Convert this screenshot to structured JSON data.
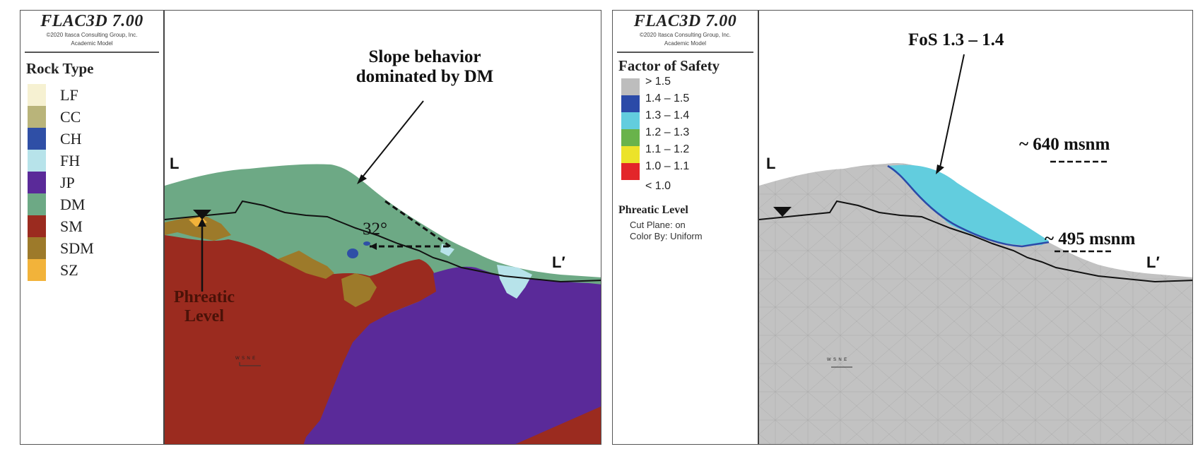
{
  "left_panel": {
    "software": "FLAC3D 7.00",
    "copyright": "©2020 Itasca Consulting Group, Inc.",
    "model": "Academic Model",
    "legend_title": "Rock Type",
    "rock_types": [
      {
        "label": "LF",
        "color": "#f6f1d2"
      },
      {
        "label": "CC",
        "color": "#b9b47a"
      },
      {
        "label": "CH",
        "color": "#2f4fa6"
      },
      {
        "label": "FH",
        "color": "#b7e3ea"
      },
      {
        "label": "JP",
        "color": "#5a2a99"
      },
      {
        "label": "DM",
        "color": "#6da985"
      },
      {
        "label": "SM",
        "color": "#9b2b1f"
      },
      {
        "label": "SDM",
        "color": "#9d7a2a"
      },
      {
        "label": "SZ",
        "color": "#f2b33a"
      }
    ],
    "section_start": "L",
    "section_end": "L′",
    "annotation_slope": [
      "Slope behavior",
      "dominated by DM"
    ],
    "annotation_angle": "32°",
    "annotation_phreatic": [
      "Phreatic",
      "Level"
    ]
  },
  "right_panel": {
    "software": "FLAC3D 7.00",
    "copyright": "©2020 Itasca Consulting Group, Inc.",
    "model": "Academic Model",
    "legend_title": "Factor of Safety",
    "fos_classes": [
      {
        "label": "> 1.5",
        "color": "#bdbdbd"
      },
      {
        "label": "1.4 – 1.5",
        "color": "#2b4aa8"
      },
      {
        "label": "1.3 – 1.4",
        "color": "#62cdde"
      },
      {
        "label": "1.2 – 1.3",
        "color": "#69b34b"
      },
      {
        "label": "1.1 – 1.2",
        "color": "#ece32a"
      },
      {
        "label": "1.0 – 1.1",
        "color": "#e3262a"
      }
    ],
    "fos_last_label": "< 1.0",
    "phreatic_title": "Phreatic Level",
    "phreatic_cut_plane": "Cut Plane: on",
    "phreatic_color_by": "Color By: Uniform",
    "section_start": "L",
    "section_end": "L′",
    "annotation_fos": "FoS 1.3 – 1.4",
    "elev_top": "~ 640 msnm",
    "elev_bottom": "~ 495 msnm"
  },
  "compass": {
    "west": "W",
    "north": "N",
    "south": "S",
    "east": "E"
  }
}
